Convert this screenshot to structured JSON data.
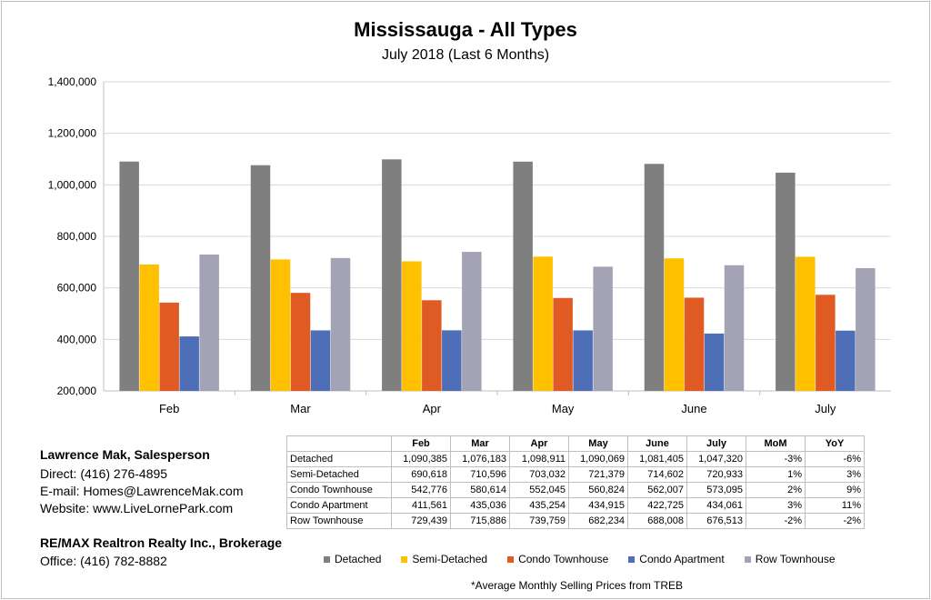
{
  "chart_data": {
    "type": "bar",
    "title": "Mississauga - All Types",
    "subtitle": "July 2018 (Last 6 Months)",
    "categories": [
      "Feb",
      "Mar",
      "Apr",
      "May",
      "June",
      "July"
    ],
    "ylim": [
      200000,
      1400000
    ],
    "yticks": [
      "200,000",
      "400,000",
      "600,000",
      "800,000",
      "1,000,000",
      "1,200,000",
      "1,400,000"
    ],
    "ytick_values": [
      200000,
      400000,
      600000,
      800000,
      1000000,
      1200000,
      1400000
    ],
    "grid": true,
    "legend_position": "bottom",
    "series": [
      {
        "name": "Detached",
        "color": "#7f7f7f",
        "values": [
          1090385,
          1076183,
          1098911,
          1090069,
          1081405,
          1047320
        ]
      },
      {
        "name": "Semi-Detached",
        "color": "#ffc000",
        "values": [
          690618,
          710596,
          703032,
          721379,
          714602,
          720933
        ]
      },
      {
        "name": "Condo Townhouse",
        "color": "#e05a24",
        "values": [
          542776,
          580614,
          552045,
          560824,
          562007,
          573095
        ]
      },
      {
        "name": "Condo Apartment",
        "color": "#4e6fb8",
        "values": [
          411561,
          435036,
          435254,
          434915,
          422725,
          434061
        ]
      },
      {
        "name": "Row Townhouse",
        "color": "#a3a3b5",
        "values": [
          729439,
          715886,
          739759,
          682234,
          688008,
          676513
        ]
      }
    ]
  },
  "table": {
    "headers": [
      "Feb",
      "Mar",
      "Apr",
      "May",
      "June",
      "July",
      "MoM",
      "YoY"
    ],
    "rows": [
      {
        "label": "Detached",
        "cells": [
          "1,090,385",
          "1,076,183",
          "1,098,911",
          "1,090,069",
          "1,081,405",
          "1,047,320",
          "-3%",
          "-6%"
        ]
      },
      {
        "label": "Semi-Detached",
        "cells": [
          "690,618",
          "710,596",
          "703,032",
          "721,379",
          "714,602",
          "720,933",
          "1%",
          "3%"
        ]
      },
      {
        "label": "Condo Townhouse",
        "cells": [
          "542,776",
          "580,614",
          "552,045",
          "560,824",
          "562,007",
          "573,095",
          "2%",
          "9%"
        ]
      },
      {
        "label": "Condo Apartment",
        "cells": [
          "411,561",
          "435,036",
          "435,254",
          "434,915",
          "422,725",
          "434,061",
          "3%",
          "11%"
        ]
      },
      {
        "label": "Row Townhouse",
        "cells": [
          "729,439",
          "715,886",
          "739,759",
          "682,234",
          "688,008",
          "676,513",
          "-2%",
          "-2%"
        ]
      }
    ]
  },
  "contact": {
    "name": "Lawrence Mak, Salesperson",
    "direct": "Direct:  (416) 276-4895",
    "email": "E-mail:  Homes@LawrenceMak.com",
    "website": "Website: www.LiveLornePark.com",
    "brokerage": "RE/MAX Realtron Realty Inc., Brokerage",
    "office": "Office: (416) 782-8882"
  },
  "footnote": "*Average Monthly Selling Prices  from TREB"
}
